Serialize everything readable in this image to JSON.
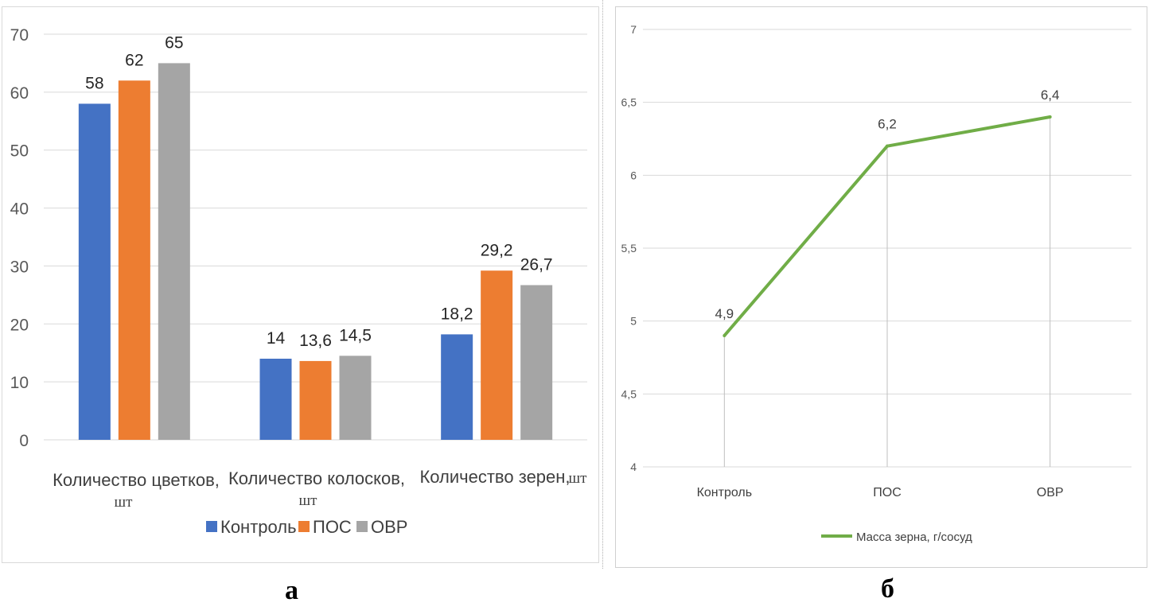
{
  "captions": {
    "a": "а",
    "b": "б"
  },
  "chart_data": [
    {
      "type": "bar",
      "title": "",
      "categories": [
        {
          "main": "Количество цветков,",
          "unit": "шт"
        },
        {
          "main": "Количество колосков,",
          "unit": "шт"
        },
        {
          "main": "Количество зерен,",
          "unit": "шт"
        }
      ],
      "series": [
        {
          "name": "Контроль",
          "color": "#4472C4",
          "values": [
            58,
            14,
            18.2
          ],
          "labels": [
            "58",
            "14",
            "18,2"
          ]
        },
        {
          "name": "ПОС",
          "color": "#ED7D31",
          "values": [
            62,
            13.6,
            29.2
          ],
          "labels": [
            "62",
            "13,6",
            "29,2"
          ]
        },
        {
          "name": "ОВР",
          "color": "#A5A5A5",
          "values": [
            65,
            14.5,
            26.7
          ],
          "labels": [
            "65",
            "14,5",
            "26,7"
          ]
        }
      ],
      "ylim": [
        0,
        70
      ],
      "yticks": [
        "0",
        "10",
        "20",
        "30",
        "40",
        "50",
        "60",
        "70"
      ],
      "grid": true,
      "legend": "bottom"
    },
    {
      "type": "line",
      "title": "",
      "categories": [
        "Контроль",
        "ПОС",
        "ОВР"
      ],
      "series": [
        {
          "name": "Масса зерна, г/сосуд",
          "color": "#70AD47",
          "values": [
            4.9,
            6.2,
            6.4
          ],
          "labels": [
            "4,9",
            "6,2",
            "6,4"
          ]
        }
      ],
      "ylim": [
        4,
        7
      ],
      "yticks": [
        "4",
        "4,5",
        "5",
        "5,5",
        "6",
        "6,5",
        "7"
      ],
      "grid": true,
      "drop_lines": true,
      "legend": "bottom"
    }
  ]
}
